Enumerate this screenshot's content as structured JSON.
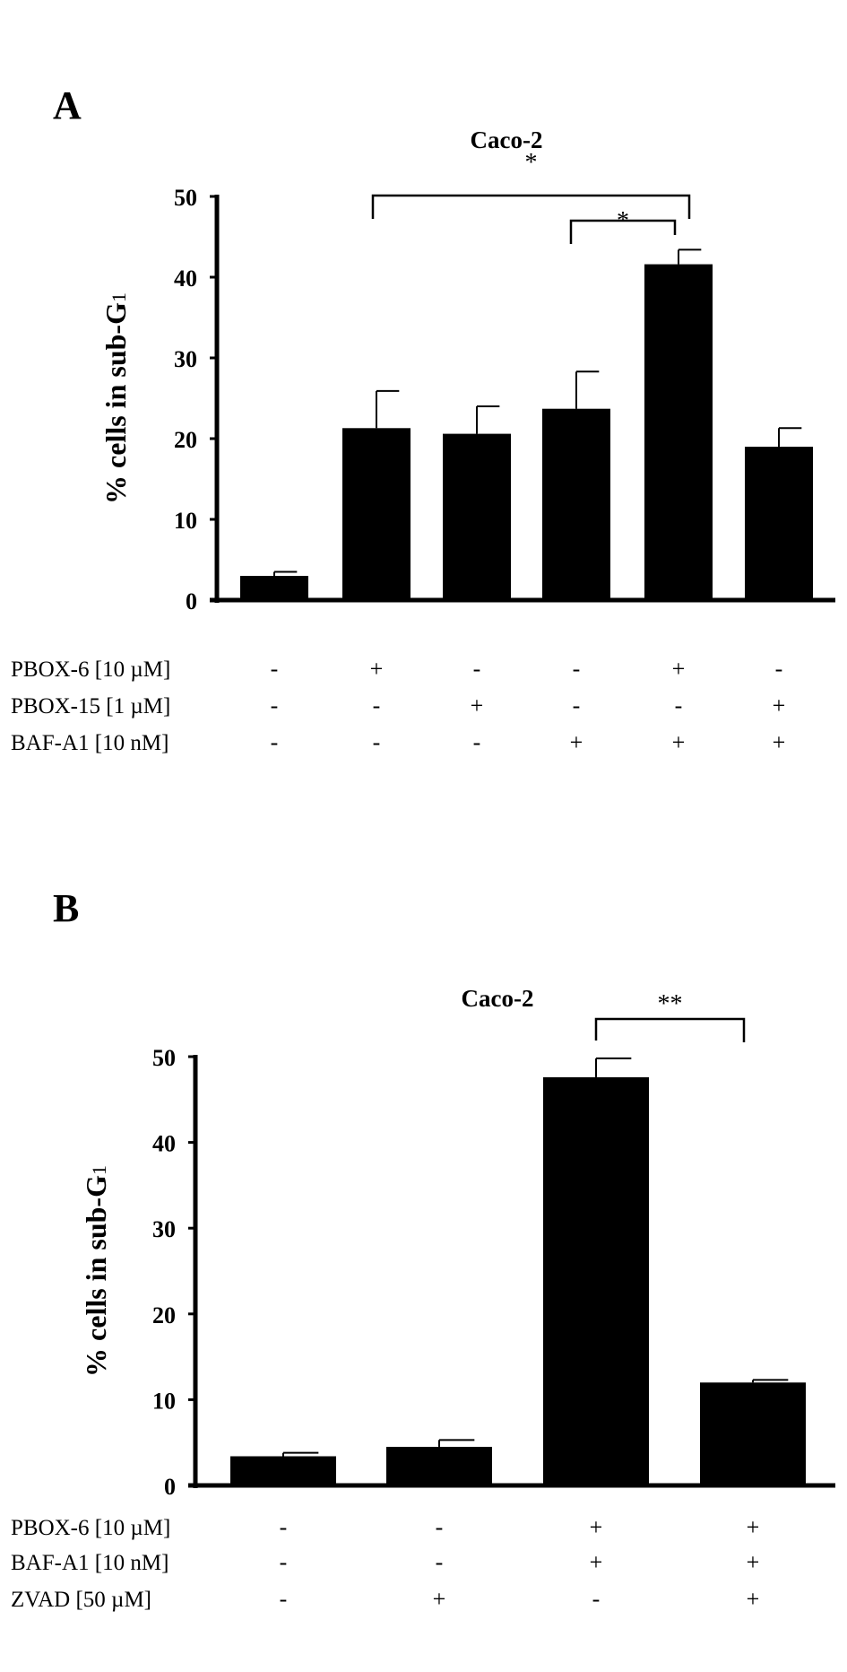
{
  "chart_data": [
    {
      "type": "bar",
      "panel_label": "A",
      "title": "Caco-2",
      "ylabel": "% cells in sub-G",
      "ylabel_subscript": "1",
      "ylim": [
        0,
        50
      ],
      "yticks": [
        "0",
        "10",
        "20",
        "30",
        "40",
        "50"
      ],
      "grid": false,
      "bar_color": "#000000",
      "values": [
        3.0,
        21.3,
        20.6,
        23.7,
        41.6,
        19.0
      ],
      "errors": [
        0.5,
        4.6,
        3.4,
        4.6,
        1.8,
        2.3
      ],
      "conditions": [
        {
          "label": "PBOX-6 [10 µM]",
          "marks": [
            "-",
            "+",
            "-",
            "-",
            "+",
            "-"
          ]
        },
        {
          "label": "PBOX-15 [1 µM]",
          "marks": [
            "-",
            "-",
            "+",
            "-",
            "-",
            "+"
          ]
        },
        {
          "label": "BAF-A1 [10 nM]",
          "marks": [
            "-",
            "-",
            "-",
            "+",
            "+",
            "+"
          ]
        }
      ],
      "significance": [
        {
          "from": 1,
          "to": 4,
          "label": "*"
        },
        {
          "from": 3,
          "to": 4,
          "label": "*"
        }
      ]
    },
    {
      "type": "bar",
      "panel_label": "B",
      "title": "Caco-2",
      "ylabel": "% cells in sub-G",
      "ylabel_subscript": "1",
      "ylim": [
        0,
        50
      ],
      "yticks": [
        "0",
        "10",
        "20",
        "30",
        "40",
        "50"
      ],
      "grid": false,
      "bar_color": "#000000",
      "values": [
        3.4,
        4.5,
        47.6,
        12.0
      ],
      "errors": [
        0.4,
        0.8,
        2.2,
        0.3
      ],
      "conditions": [
        {
          "label": "PBOX-6 [10 µM]",
          "marks": [
            "-",
            "-",
            "+",
            "+"
          ]
        },
        {
          "label": "BAF-A1 [10 nM]",
          "marks": [
            "-",
            "-",
            "+",
            "+"
          ]
        },
        {
          "label": "ZVAD [50 µM]",
          "marks": [
            "-",
            "+",
            "-",
            "+"
          ]
        }
      ],
      "significance": [
        {
          "from": 2,
          "to": 3,
          "label": "**"
        }
      ]
    }
  ]
}
